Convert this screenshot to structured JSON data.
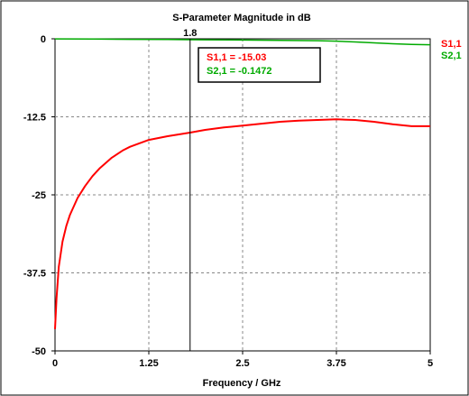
{
  "chart_data": {
    "type": "line",
    "title": "S-Parameter Magnitude in dB",
    "xlabel": "Frequency / GHz",
    "ylabel": "",
    "xlim": [
      0,
      5
    ],
    "ylim": [
      -50,
      0
    ],
    "x_ticks": [
      0,
      1.25,
      2.5,
      3.75,
      5
    ],
    "x_tick_labels": [
      "0",
      "1.25",
      "2.5",
      "3.75",
      "5"
    ],
    "y_ticks": [
      0,
      -12.5,
      -25,
      -37.5,
      -50
    ],
    "y_tick_labels": [
      "0",
      "-12.5",
      "-25",
      "-37.5",
      "-50"
    ],
    "grid": true,
    "legend_position": "right",
    "series": [
      {
        "name": "S1,1",
        "color": "#ff0000",
        "x": [
          0,
          0.02,
          0.05,
          0.1,
          0.15,
          0.2,
          0.3,
          0.4,
          0.5,
          0.6,
          0.75,
          0.9,
          1.0,
          1.25,
          1.5,
          1.8,
          2.0,
          2.25,
          2.5,
          2.75,
          3.0,
          3.25,
          3.5,
          3.75,
          4.0,
          4.25,
          4.5,
          4.75,
          5.0
        ],
        "y": [
          -46.5,
          -41.5,
          -36.5,
          -32.5,
          -30.0,
          -28.2,
          -25.5,
          -23.6,
          -22.0,
          -20.7,
          -19.1,
          -17.9,
          -17.3,
          -16.2,
          -15.6,
          -15.03,
          -14.6,
          -14.2,
          -13.9,
          -13.6,
          -13.3,
          -13.1,
          -13.0,
          -12.9,
          -13.0,
          -13.3,
          -13.7,
          -14.0,
          -14.0
        ]
      },
      {
        "name": "S2,1",
        "color": "#00aa00",
        "x": [
          0,
          0.5,
          1.0,
          1.5,
          1.8,
          2.0,
          2.5,
          3.0,
          3.5,
          3.75,
          4.0,
          4.25,
          4.5,
          4.75,
          5.0
        ],
        "y": [
          -0.02,
          -0.04,
          -0.08,
          -0.12,
          -0.1472,
          -0.16,
          -0.2,
          -0.25,
          -0.3,
          -0.38,
          -0.5,
          -0.65,
          -0.8,
          -0.9,
          -0.95
        ]
      }
    ],
    "marker": {
      "x": 1.8,
      "label": "1.8",
      "readouts": [
        {
          "text": "S1,1 = -15.03",
          "color": "#ff0000"
        },
        {
          "text": "S2,1 = -0.1472",
          "color": "#00aa00"
        }
      ]
    }
  }
}
